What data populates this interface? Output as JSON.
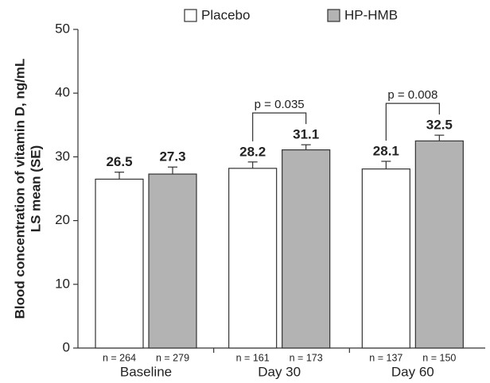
{
  "chart_data": {
    "type": "bar",
    "y_label_lines": [
      "Blood concentration of vitamin D, ng/mL",
      "LS mean (SE)"
    ],
    "categories": [
      "Baseline",
      "Day 30",
      "Day 60"
    ],
    "series": [
      {
        "name": "Placebo",
        "color": "#ffffff",
        "values": [
          26.5,
          28.2,
          28.1
        ],
        "errors": [
          1.1,
          1.0,
          1.2
        ],
        "n_labels": [
          "n = 264",
          "n = 161",
          "n = 137"
        ]
      },
      {
        "name": "HP-HMB",
        "color": "#b3b3b3",
        "values": [
          27.3,
          31.1,
          32.5
        ],
        "errors": [
          1.1,
          0.8,
          0.9
        ],
        "n_labels": [
          "n = 279",
          "n = 173",
          "n = 150"
        ]
      }
    ],
    "p_values": [
      null,
      "p = 0.035",
      "p = 0.008"
    ],
    "ylim": [
      0,
      50
    ],
    "yticks": [
      0,
      10,
      20,
      30,
      40,
      50
    ],
    "legend": "top"
  }
}
